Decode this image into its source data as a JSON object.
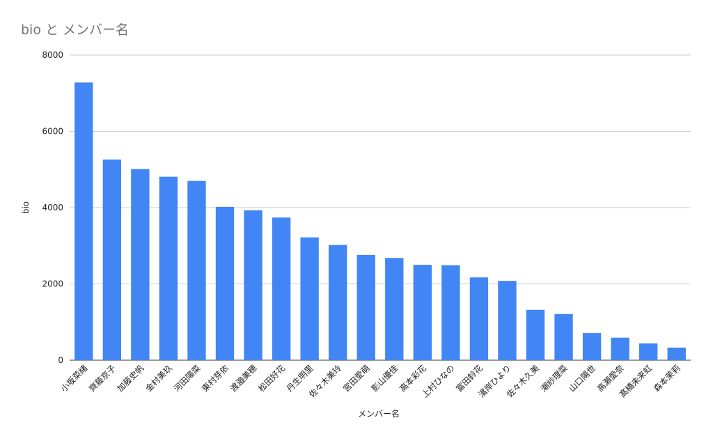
{
  "chart_data": {
    "type": "bar",
    "title": "bio と メンバー名",
    "xlabel": "メンバー名",
    "ylabel": "bio",
    "ylim": [
      0,
      8000
    ],
    "yticks": [
      0,
      2000,
      4000,
      6000,
      8000
    ],
    "grid": true,
    "bar_color": "#4285f4",
    "categories": [
      "小坂菜緒",
      "齊藤京子",
      "加藤史帆",
      "金村美玖",
      "河田陽菜",
      "東村芽依",
      "渡邉美穂",
      "松田好花",
      "丹生明里",
      "佐々木美玲",
      "宮田愛萌",
      "影山優佳",
      "高本彩花",
      "上村ひなの",
      "富田鈴花",
      "濱岸ひより",
      "佐々木久美",
      "潮紗理菜",
      "山口陽世",
      "高瀬愛奈",
      "髙橋未来虹",
      "森本茉莉"
    ],
    "values": [
      7280,
      5260,
      5010,
      4810,
      4700,
      4020,
      3930,
      3740,
      3220,
      3020,
      2760,
      2680,
      2500,
      2490,
      2170,
      2080,
      1320,
      1210,
      710,
      590,
      440,
      330
    ]
  }
}
